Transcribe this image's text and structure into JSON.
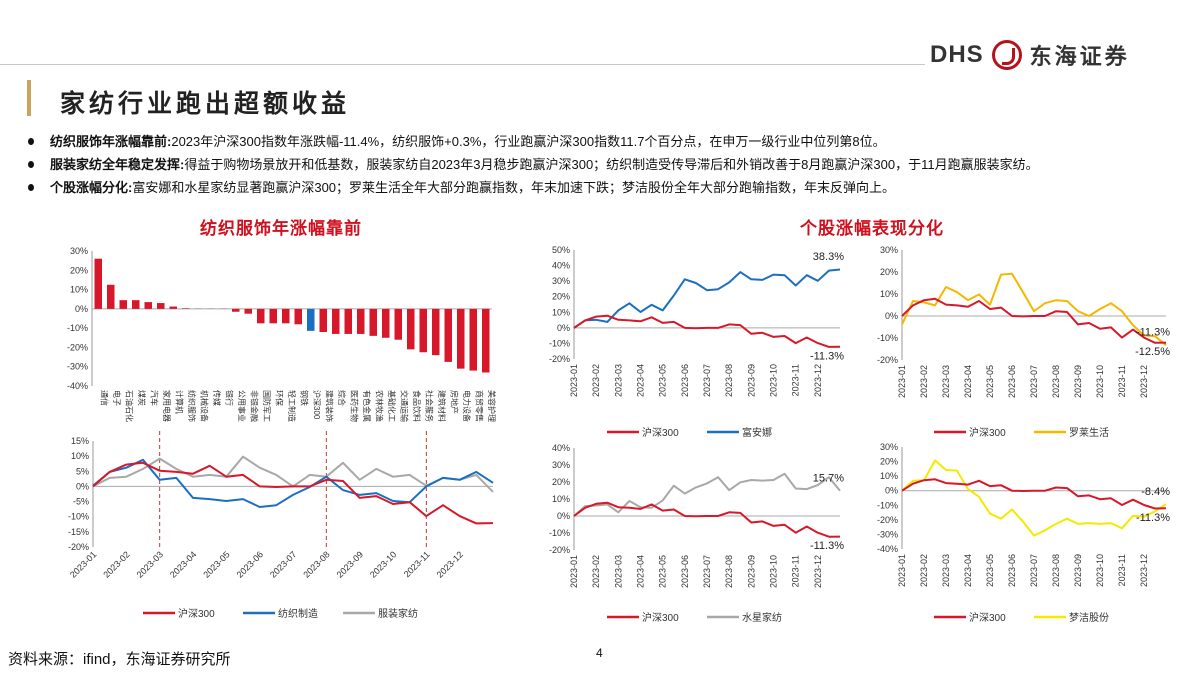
{
  "header": {
    "logo_text": "DHS",
    "logo_cn": "东海证券",
    "title": "家纺行业跑出超额收益"
  },
  "bullets": [
    {
      "head": "纺织服饰年涨幅靠前:",
      "text": "2023年沪深300指数年涨跌幅-11.4%，纺织服饰+0.3%，行业跑赢沪深300指数11.7个百分点，在申万一级行业中位列第8位。"
    },
    {
      "head": "服装家纺全年稳定发挥:",
      "text": "得益于购物场景放开和低基数，服装家纺自2023年3月稳步跑赢沪深300；纺织制造受传导滞后和外销改善于8月跑赢沪深300，于11月跑赢服装家纺。"
    },
    {
      "head": "个股涨幅分化:",
      "text": "富安娜和水星家纺显著跑赢沪深300；罗莱生活全年大部分跑赢指数，年末加速下跌；梦洁股份全年大部分跑输指数，年末反弹向上。"
    }
  ],
  "sections": {
    "left": "纺织服饰年涨幅靠前",
    "right": "个股涨幅表现分化"
  },
  "footer": {
    "source": "资料来源：ifind，东海证券研究所",
    "page": "4"
  },
  "colors": {
    "red": "#d7182a",
    "blue": "#1a6fc1",
    "gray": "#a8a8a8",
    "orange": "#f5b800",
    "yellow": "#f4ea00",
    "accent": "#c9a45c"
  },
  "chart_data": [
    {
      "type": "bar",
      "title": "",
      "ylim": [
        -40,
        30
      ],
      "yticks": [
        30,
        20,
        10,
        0,
        -10,
        -20,
        -30,
        -40
      ],
      "categories": [
        "通信",
        "电子",
        "石油石化",
        "煤炭",
        "汽车",
        "家用电器",
        "计算机",
        "纺织服饰",
        "机械设备",
        "传媒",
        "银行",
        "公用事业",
        "非银金融",
        "国防军工",
        "环保",
        "轻工制造",
        "钢铁",
        "沪深300",
        "建筑装饰",
        "综合",
        "医药生物",
        "有色金属",
        "农林牧渔",
        "基础化工",
        "交通运输",
        "食品饮料",
        "社会服务",
        "建筑材料",
        "房地产",
        "电力设备",
        "商贸零售",
        "美容护理"
      ],
      "values": [
        26,
        12.5,
        4.5,
        4.5,
        3.5,
        3,
        1.2,
        0.3,
        0.1,
        0.1,
        0.1,
        -1.5,
        -2.5,
        -7.5,
        -7.5,
        -7.5,
        -8,
        -11.4,
        -12,
        -13,
        -13,
        -13,
        -14,
        -15,
        -16,
        -21,
        -22.5,
        -24,
        -27.5,
        -31,
        -32,
        -33
      ],
      "highlight": "沪深300"
    },
    {
      "type": "line",
      "ylim": [
        -20,
        15
      ],
      "yticks": [
        15,
        10,
        5,
        0,
        -5,
        -10,
        -15,
        -20
      ],
      "xticks": [
        "2023-01",
        "2023-02",
        "2023-03",
        "2023-04",
        "2023-05",
        "2023-06",
        "2023-07",
        "2023-08",
        "2023-09",
        "2023-10",
        "2023-11",
        "2023-12"
      ],
      "markers": [
        "2023-03",
        "2023-08",
        "2023-11"
      ],
      "series": [
        {
          "name": "沪深300",
          "color": "#d7182a",
          "values": [
            0,
            4,
            8,
            7,
            6,
            4,
            5,
            6,
            4,
            3,
            0,
            -1,
            0,
            0,
            3,
            1,
            -3,
            -4,
            -5,
            -6,
            -9,
            -7,
            -9,
            -13,
            -11.3
          ]
        },
        {
          "name": "纺织制造",
          "color": "#1a6fc1",
          "values": [
            1,
            4,
            7,
            8,
            3,
            2,
            -3,
            -5,
            -4,
            -5,
            -6,
            -7,
            -2,
            -1,
            4,
            -2,
            -2,
            -3,
            -4,
            -6,
            0,
            2,
            3,
            4,
            2
          ]
        },
        {
          "name": "服装家纺",
          "color": "#a8a8a8",
          "values": [
            0,
            2,
            4,
            5,
            10,
            5,
            4,
            3,
            4,
            9,
            7,
            3,
            0,
            3,
            4,
            7,
            3,
            5,
            4,
            3,
            1,
            2,
            3,
            3,
            -1
          ]
        }
      ]
    },
    {
      "type": "line",
      "ylim": [
        -20,
        50
      ],
      "yticks": [
        50,
        40,
        30,
        20,
        10,
        0,
        -10,
        -20
      ],
      "xticks": [
        "2023-01",
        "2023-02",
        "2023-03",
        "2023-04",
        "2023-05",
        "2023-06",
        "2023-07",
        "2023-08",
        "2023-09",
        "2023-10",
        "2023-11",
        "2023-12"
      ],
      "annotations": [
        "38.3%",
        "-11.3%"
      ],
      "series": [
        {
          "name": "沪深300",
          "color": "#d7182a",
          "values": [
            0,
            4,
            8,
            7,
            6,
            4,
            5,
            6,
            4,
            3,
            0,
            -1,
            0,
            0,
            3,
            1,
            -3,
            -4,
            -5,
            -6,
            -9,
            -7,
            -9,
            -13,
            -11.3
          ]
        },
        {
          "name": "富安娜",
          "color": "#1a6fc1",
          "values": [
            0,
            4,
            6,
            3,
            12,
            15,
            11,
            14,
            12,
            20,
            32,
            28,
            25,
            24,
            30,
            35,
            32,
            30,
            35,
            33,
            28,
            33,
            31,
            36,
            38.3
          ]
        }
      ]
    },
    {
      "type": "line",
      "ylim": [
        -20,
        30
      ],
      "yticks": [
        30,
        20,
        10,
        0,
        -10,
        -20
      ],
      "xticks": [
        "2023-01",
        "2023-02",
        "2023-03",
        "2023-04",
        "2023-05",
        "2023-06",
        "2023-07",
        "2023-08",
        "2023-09",
        "2023-10",
        "2023-11",
        "2023-12"
      ],
      "annotations": [
        "-11.3%",
        "-12.5%"
      ],
      "series": [
        {
          "name": "沪深300",
          "color": "#d7182a",
          "values": [
            0,
            4,
            8,
            7,
            6,
            4,
            5,
            6,
            4,
            3,
            0,
            -1,
            0,
            0,
            3,
            1,
            -3,
            -4,
            -5,
            -6,
            -9,
            -7,
            -9,
            -13,
            -11.3
          ]
        },
        {
          "name": "罗莱生活",
          "color": "#f5b800",
          "values": [
            -3,
            6,
            7,
            4,
            14,
            10,
            8,
            9,
            6,
            18,
            20,
            10,
            3,
            5,
            8,
            6,
            3,
            0,
            4,
            5,
            3,
            -5,
            -8,
            -10,
            -12.5
          ]
        }
      ]
    },
    {
      "type": "line",
      "ylim": [
        -20,
        40
      ],
      "yticks": [
        40,
        30,
        20,
        10,
        0,
        -10,
        -20
      ],
      "xticks": [
        "2023-01",
        "2023-02",
        "2023-03",
        "2023-04",
        "2023-05",
        "2023-06",
        "2023-07",
        "2023-08",
        "2023-09",
        "2023-10",
        "2023-11",
        "2023-12"
      ],
      "annotations": [
        "15.7%",
        "-11.3%"
      ],
      "series": [
        {
          "name": "沪深300",
          "color": "#d7182a",
          "values": [
            0,
            4,
            8,
            7,
            6,
            4,
            5,
            6,
            4,
            3,
            0,
            -1,
            0,
            0,
            3,
            1,
            -3,
            -4,
            -5,
            -6,
            -9,
            -7,
            -9,
            -13,
            -11.3
          ]
        },
        {
          "name": "水星家纺",
          "color": "#a8a8a8",
          "values": [
            0,
            5,
            7,
            6,
            3,
            8,
            6,
            4,
            10,
            17,
            14,
            16,
            20,
            22,
            16,
            19,
            22,
            20,
            22,
            24,
            17,
            15,
            19,
            22,
            15.7
          ]
        }
      ]
    },
    {
      "type": "line",
      "ylim": [
        -40,
        30
      ],
      "yticks": [
        30,
        20,
        10,
        0,
        -10,
        -20,
        -30,
        -40
      ],
      "xticks": [
        "2023-01",
        "2023-02",
        "2023-03",
        "2023-04",
        "2023-05",
        "2023-06",
        "2023-07",
        "2023-08",
        "2023-09",
        "2023-10",
        "2023-11",
        "2023-12"
      ],
      "annotations": [
        "-8.4%",
        "-11.3%"
      ],
      "series": [
        {
          "name": "沪深300",
          "color": "#d7182a",
          "values": [
            0,
            4,
            8,
            7,
            6,
            4,
            5,
            6,
            4,
            3,
            0,
            -1,
            0,
            0,
            3,
            1,
            -3,
            -4,
            -5,
            -6,
            -9,
            -7,
            -9,
            -13,
            -11.3
          ]
        },
        {
          "name": "梦洁股份",
          "color": "#f4ea00",
          "values": [
            0,
            6,
            8,
            20,
            15,
            13,
            2,
            -5,
            -15,
            -20,
            -12,
            -22,
            -30,
            -28,
            -22,
            -20,
            -22,
            -23,
            -22,
            -23,
            -25,
            -18,
            -17,
            -15,
            -8.4
          ]
        }
      ]
    }
  ]
}
